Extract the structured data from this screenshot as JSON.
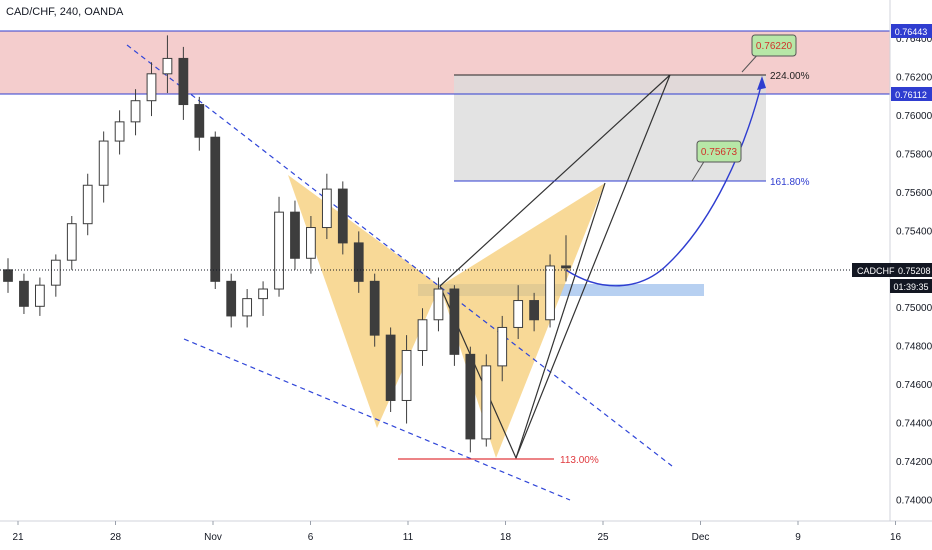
{
  "chart_data": {
    "type": "candlestick",
    "title": "CAD/CHF, 240, OANDA",
    "x_ticks": [
      "21",
      "28",
      "Nov",
      "6",
      "11",
      "18",
      "25",
      "Dec",
      "9",
      "16"
    ],
    "y_ticks": [
      "0.76400",
      "0.76200",
      "0.76000",
      "0.75800",
      "0.75600",
      "0.75400",
      "0.75200",
      "0.75000",
      "0.74800",
      "0.74600",
      "0.74400",
      "0.74200",
      "0.74000"
    ],
    "ylim": [
      0.7395,
      0.765
    ],
    "grid": false,
    "colors": {
      "up": "#3d3d3d",
      "down": "#3d3d3d",
      "resistance_zone": "#f2c4c4",
      "harmonic": "#f5c96b",
      "target_zone": "#dcdcdc",
      "support_bar": "#9fc0ec",
      "price_line": "#131722",
      "wedge": "#2f45d8",
      "projection": "#2f3dd0",
      "fib_113": "#e0393e"
    },
    "candles": [
      {
        "date": "Oct 18",
        "o": 0.752,
        "h": 0.7526,
        "l": 0.7508,
        "c": 0.7514
      },
      {
        "date": "Oct 19",
        "o": 0.7514,
        "h": 0.7518,
        "l": 0.7497,
        "c": 0.7501
      },
      {
        "date": "Oct 20",
        "o": 0.7501,
        "h": 0.7516,
        "l": 0.7496,
        "c": 0.7512
      },
      {
        "date": "Oct 21",
        "o": 0.7512,
        "h": 0.7528,
        "l": 0.7506,
        "c": 0.7525
      },
      {
        "date": "Oct 22",
        "o": 0.7525,
        "h": 0.7548,
        "l": 0.752,
        "c": 0.7544
      },
      {
        "date": "Oct 23",
        "o": 0.7544,
        "h": 0.757,
        "l": 0.7538,
        "c": 0.7564
      },
      {
        "date": "Oct 24",
        "o": 0.7564,
        "h": 0.7592,
        "l": 0.7555,
        "c": 0.7587
      },
      {
        "date": "Oct 25",
        "o": 0.7587,
        "h": 0.7603,
        "l": 0.758,
        "c": 0.7597
      },
      {
        "date": "Oct 26",
        "o": 0.7597,
        "h": 0.7614,
        "l": 0.759,
        "c": 0.7608
      },
      {
        "date": "Oct 27",
        "o": 0.7608,
        "h": 0.7628,
        "l": 0.76,
        "c": 0.7622
      },
      {
        "date": "Oct 28",
        "o": 0.7622,
        "h": 0.7642,
        "l": 0.7612,
        "c": 0.763
      },
      {
        "date": "Oct 29",
        "o": 0.763,
        "h": 0.7636,
        "l": 0.7598,
        "c": 0.7606
      },
      {
        "date": "Oct 30",
        "o": 0.7606,
        "h": 0.761,
        "l": 0.7582,
        "c": 0.7589
      },
      {
        "date": "Oct 31",
        "o": 0.7589,
        "h": 0.7592,
        "l": 0.751,
        "c": 0.7514
      },
      {
        "date": "Nov 1",
        "o": 0.7514,
        "h": 0.7518,
        "l": 0.749,
        "c": 0.7496
      },
      {
        "date": "Nov 2",
        "o": 0.7496,
        "h": 0.751,
        "l": 0.749,
        "c": 0.7505
      },
      {
        "date": "Nov 3",
        "o": 0.7505,
        "h": 0.7514,
        "l": 0.7496,
        "c": 0.751
      },
      {
        "date": "Nov 6",
        "o": 0.751,
        "h": 0.7558,
        "l": 0.7506,
        "c": 0.755
      },
      {
        "date": "Nov 7",
        "o": 0.755,
        "h": 0.7556,
        "l": 0.752,
        "c": 0.7526
      },
      {
        "date": "Nov 8",
        "o": 0.7526,
        "h": 0.7548,
        "l": 0.7518,
        "c": 0.7542
      },
      {
        "date": "Nov 9",
        "o": 0.7542,
        "h": 0.757,
        "l": 0.7536,
        "c": 0.7562
      },
      {
        "date": "Nov 10",
        "o": 0.7562,
        "h": 0.7566,
        "l": 0.7528,
        "c": 0.7534
      },
      {
        "date": "Nov 13",
        "o": 0.7534,
        "h": 0.754,
        "l": 0.7508,
        "c": 0.7514
      },
      {
        "date": "Nov 14",
        "o": 0.7514,
        "h": 0.7518,
        "l": 0.748,
        "c": 0.7486
      },
      {
        "date": "Nov 15",
        "o": 0.7486,
        "h": 0.749,
        "l": 0.7446,
        "c": 0.7452
      },
      {
        "date": "Nov 16",
        "o": 0.7452,
        "h": 0.7486,
        "l": 0.744,
        "c": 0.7478
      },
      {
        "date": "Nov 17",
        "o": 0.7478,
        "h": 0.75,
        "l": 0.747,
        "c": 0.7494
      },
      {
        "date": "Nov 20",
        "o": 0.7494,
        "h": 0.7516,
        "l": 0.7488,
        "c": 0.751
      },
      {
        "date": "Nov 21",
        "o": 0.751,
        "h": 0.7512,
        "l": 0.747,
        "c": 0.7476
      },
      {
        "date": "Nov 22",
        "o": 0.7476,
        "h": 0.748,
        "l": 0.7425,
        "c": 0.7432
      },
      {
        "date": "Nov 23",
        "o": 0.7432,
        "h": 0.7476,
        "l": 0.7428,
        "c": 0.747
      },
      {
        "date": "Nov 24",
        "o": 0.747,
        "h": 0.7496,
        "l": 0.7462,
        "c": 0.749
      },
      {
        "date": "Nov 27",
        "o": 0.749,
        "h": 0.7512,
        "l": 0.7484,
        "c": 0.7504
      },
      {
        "date": "Nov 28",
        "o": 0.7504,
        "h": 0.7508,
        "l": 0.7488,
        "c": 0.7494
      },
      {
        "date": "Nov 29",
        "o": 0.7494,
        "h": 0.7528,
        "l": 0.749,
        "c": 0.7522
      },
      {
        "date": "Nov 30",
        "o": 0.7522,
        "h": 0.7538,
        "l": 0.7514,
        "c": 0.7521
      }
    ],
    "price_line": {
      "symbol": "CADCHF",
      "value": "0.75208",
      "countdown": "01:39:35"
    },
    "zone_labels": {
      "upper": "0.76443",
      "lower": "0.76112"
    },
    "annotations": {
      "fib_224": "224.00%",
      "fib_161": "161.80%",
      "fib_113": "113.00%",
      "target_1": "0.76220",
      "target_2": "0.75673"
    }
  }
}
